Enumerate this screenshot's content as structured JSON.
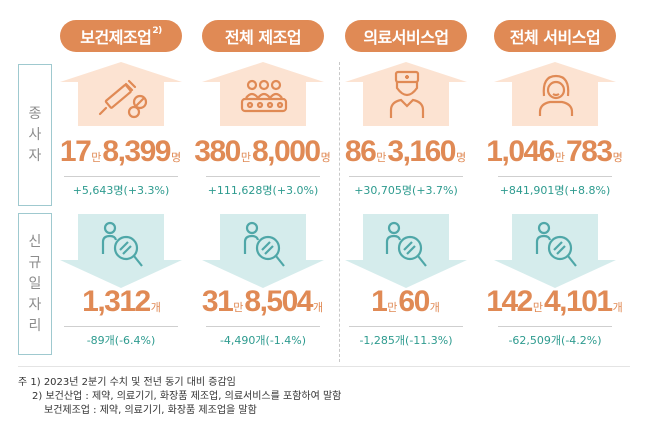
{
  "categories": [
    {
      "name": "보건제조업",
      "sup": "2)"
    },
    {
      "name": "전체 제조업",
      "sup": ""
    },
    {
      "name": "의료서비스업",
      "sup": ""
    },
    {
      "name": "전체 서비스업",
      "sup": ""
    }
  ],
  "row_labels": {
    "employees": [
      "종",
      "사",
      "자"
    ],
    "new_jobs": [
      "신",
      "규",
      "일",
      "자",
      "리"
    ]
  },
  "employees": [
    {
      "parts": [
        "17",
        "만",
        "8,399",
        "명"
      ],
      "change": "+5,643명(+3.3%)",
      "icon": "medicine-syringe-icon"
    },
    {
      "parts": [
        "380",
        "만",
        "8,000",
        "명"
      ],
      "change": "+111,628명(+3.0%)",
      "icon": "factory-workers-icon"
    },
    {
      "parts": [
        "86",
        "만",
        "3,160",
        "명"
      ],
      "change": "+30,705명(+3.7%)",
      "icon": "doctor-icon"
    },
    {
      "parts": [
        "1,046",
        "만",
        "783",
        "명"
      ],
      "change": "+841,901명(+8.8%)",
      "icon": "service-worker-icon"
    }
  ],
  "new_jobs": [
    {
      "parts": [
        "",
        "",
        "1,312",
        "개"
      ],
      "change": "-89개(-6.4%)",
      "icon": "job-search-icon"
    },
    {
      "parts": [
        "31",
        "만",
        "8,504",
        "개"
      ],
      "change": "-4,490개(-1.4%)",
      "icon": "job-search-icon"
    },
    {
      "parts": [
        "1",
        "만",
        "60",
        "개"
      ],
      "change": "-1,285개(-11.3%)",
      "icon": "job-search-icon"
    },
    {
      "parts": [
        "142",
        "만",
        "4,101",
        "개"
      ],
      "change": "-62,509개(-4.2%)",
      "icon": "job-search-icon"
    }
  ],
  "notes": [
    "주 1) 2023년 2분기 수치 및 전년 동기 대비 증감임",
    "2) 보건산업 : 제약, 의료기기, 화장품 제조업, 의료서비스를 포함하여 말함",
    "보건제조업 : 제약, 의료기기, 화장품 제조업을 말함"
  ],
  "colors": {
    "accent": "#E08A55",
    "up_arrow": "#FCE3D2",
    "down_arrow": "#D5ECEC",
    "icon_orange": "#E08A55",
    "icon_teal": "#4FA7A8",
    "change_text": "#2e9b8f"
  }
}
